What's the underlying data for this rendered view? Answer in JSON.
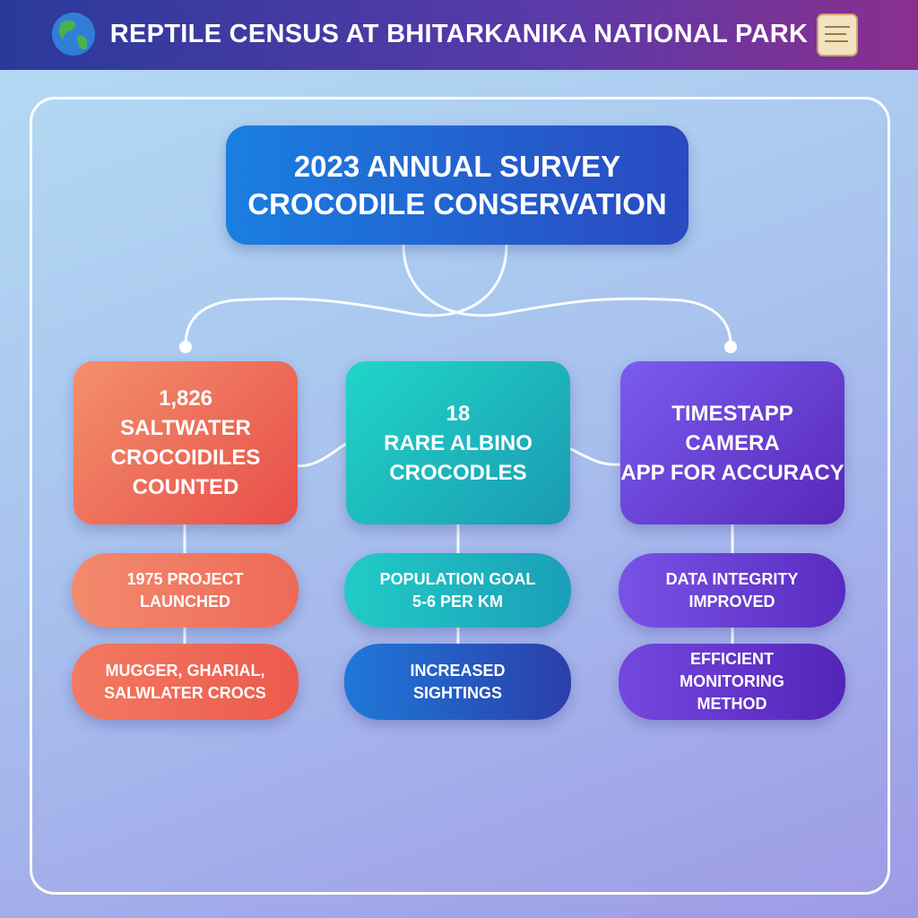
{
  "header": {
    "title": "REPTILE CENSUS AT BHITARKANIKA NATIONAL PARK"
  },
  "root": {
    "lines": [
      "2023 ANNUAL SURVEY",
      "CROCODILE CONSERVATION"
    ]
  },
  "columns": [
    {
      "main": [
        "1,826",
        "SALTWATER",
        "CROCOIDILES",
        "COUNTED"
      ],
      "items": [
        [
          "1975 PROJECT",
          "LAUNCHED"
        ],
        [
          "MUGGER, GHARIAL,",
          "SALWLATER CROCS"
        ]
      ]
    },
    {
      "main": [
        "18",
        "RARE ALBINO",
        "CROCODLES"
      ],
      "items": [
        [
          "POPULATION GOAL",
          "5-6 PER KM"
        ],
        [
          "INCREASED",
          "SIGHTINGS"
        ]
      ]
    },
    {
      "main": [
        "TIMESTAPP",
        "CAMERA",
        "APP FOR ACCURACY"
      ],
      "items": [
        [
          "DATA INTEGRITY",
          "IMPROVED"
        ],
        [
          "EFFICIENT",
          "MONITORING",
          "METHOD"
        ]
      ]
    }
  ]
}
